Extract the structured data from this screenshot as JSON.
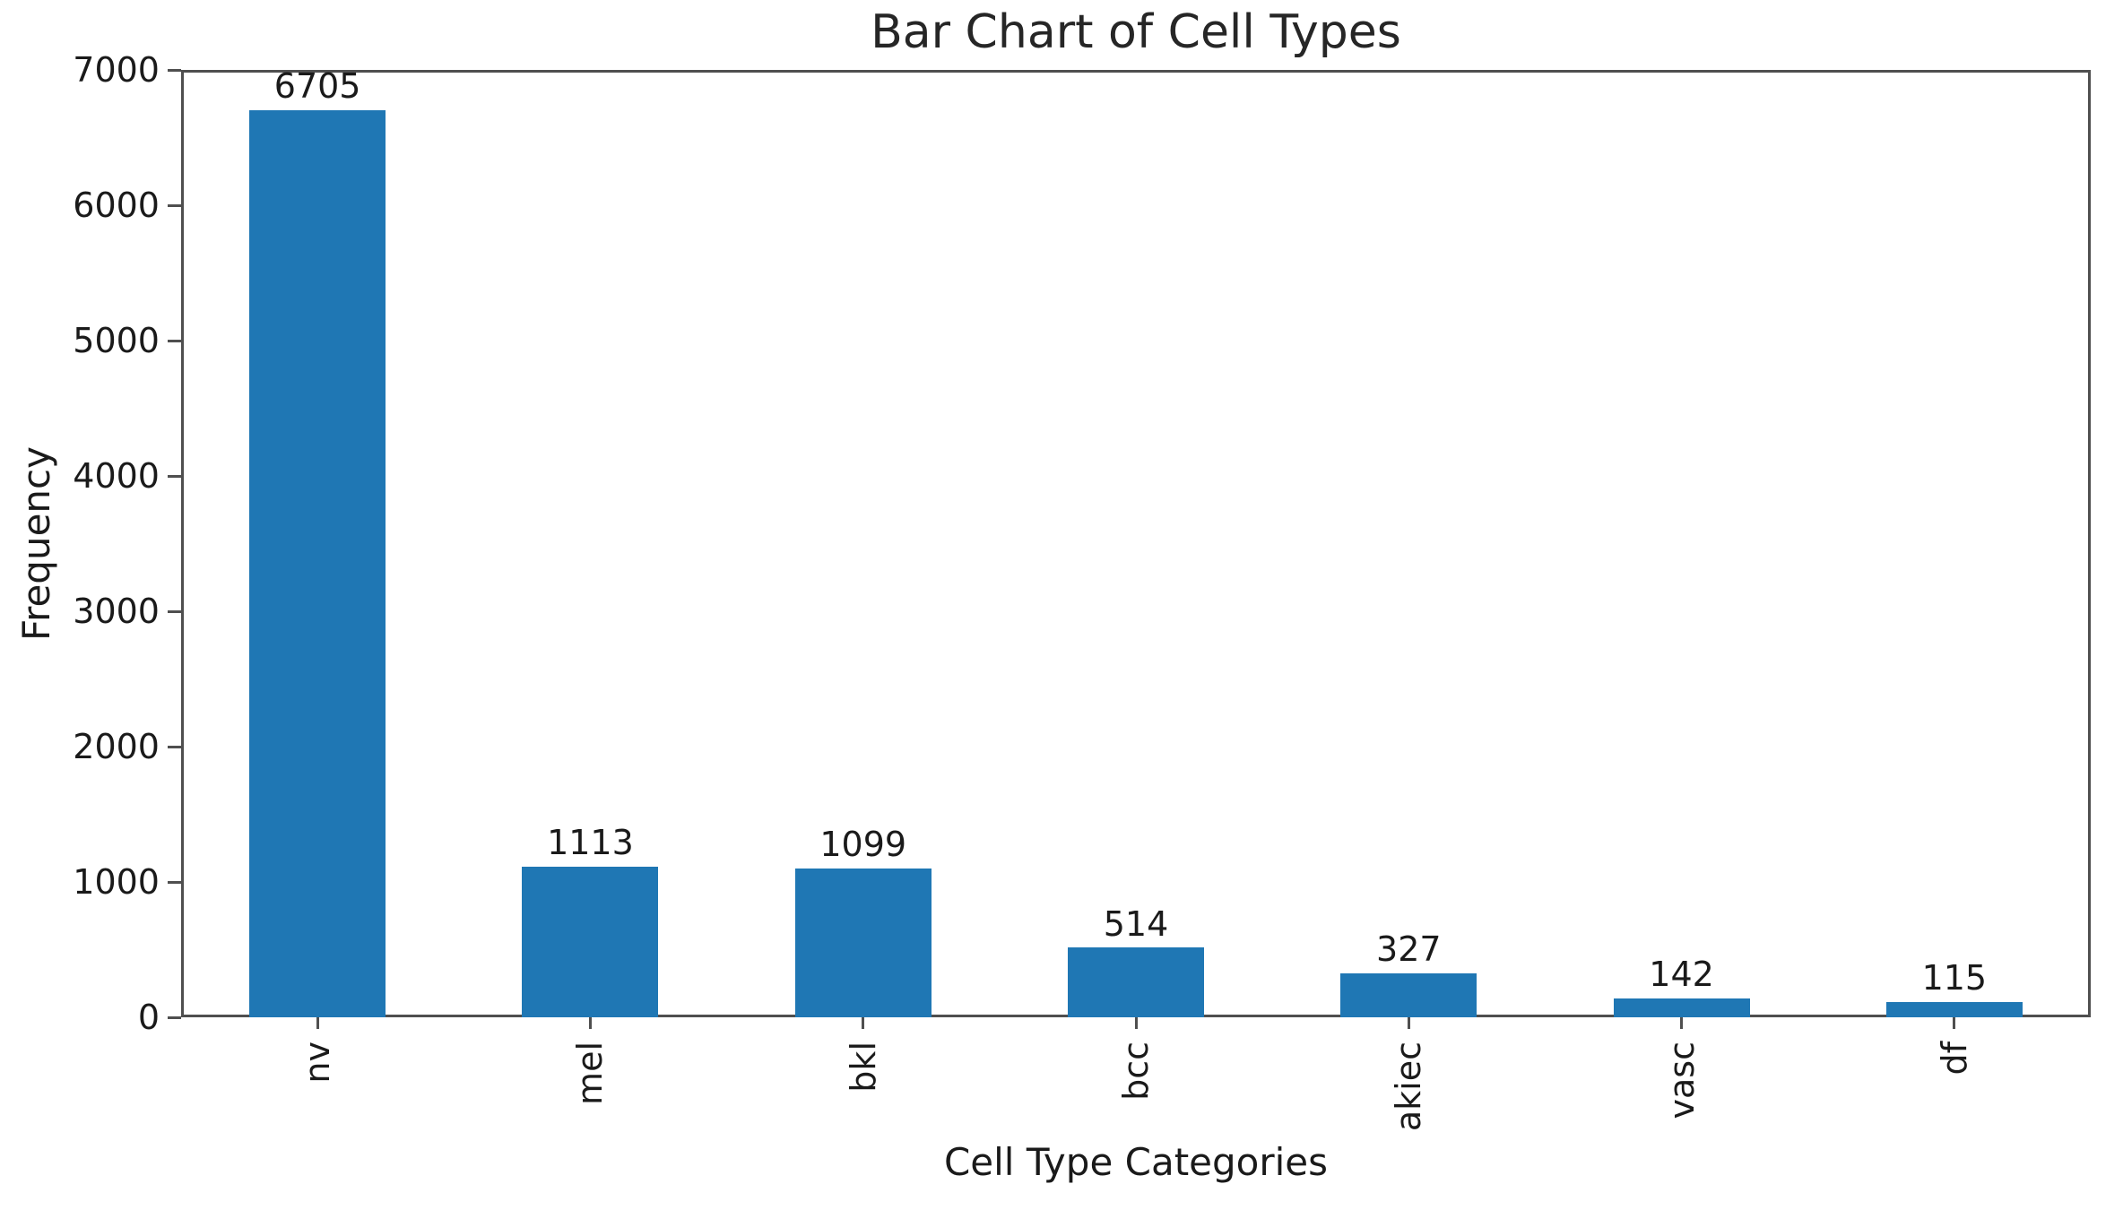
{
  "chart_data": {
    "type": "bar",
    "title": "Bar Chart of Cell Types",
    "xlabel": "Cell Type Categories",
    "ylabel": "Frequency",
    "categories": [
      "nv",
      "mel",
      "bkl",
      "bcc",
      "akiec",
      "vasc",
      "df"
    ],
    "values": [
      6705,
      1113,
      1099,
      514,
      327,
      142,
      115
    ],
    "bar_value_labels": [
      "6705",
      "1113",
      "1099",
      "514",
      "327",
      "142",
      "115"
    ],
    "ylim": [
      0,
      7000
    ],
    "yticks": [
      0,
      1000,
      2000,
      3000,
      4000,
      5000,
      6000,
      7000
    ],
    "xtick_rotation_deg": 90,
    "grid": false,
    "legend_position": "none",
    "bar_color": "#1f77b4",
    "axis_color": "#4f4f4f",
    "text_color": "#1a1a1a",
    "background_color": "#ffffff"
  }
}
